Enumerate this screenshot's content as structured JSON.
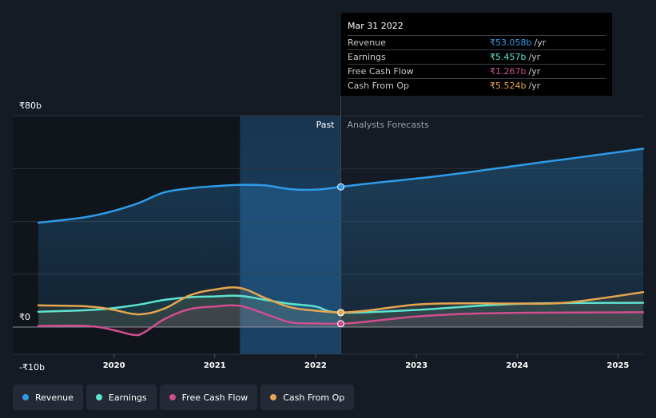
{
  "chart_data": {
    "type": "area",
    "y_axis_labels": [
      "₹80b",
      "₹0",
      "-₹10b"
    ],
    "ylim": [
      -10,
      80
    ],
    "x_ticks": [
      "2020",
      "2021",
      "2022",
      "2023",
      "2024",
      "2025"
    ],
    "x_range": [
      2019.25,
      2025.25
    ],
    "past_label": "Past",
    "forecast_label": "Analysts Forecasts",
    "divider_x": 2022.25,
    "highlight_range": [
      2021.25,
      2022.25
    ],
    "series": [
      {
        "name": "Revenue",
        "color": "#2f9be8",
        "fill": true,
        "x": [
          2019.25,
          2019.5,
          2019.75,
          2020.0,
          2020.25,
          2020.5,
          2020.75,
          2021.0,
          2021.25,
          2021.5,
          2021.75,
          2022.0,
          2022.25,
          2022.5,
          2022.75,
          2023.0,
          2023.25,
          2023.5,
          2023.75,
          2024.0,
          2024.25,
          2024.5,
          2024.75,
          2025.0,
          2025.25
        ],
        "values": [
          39.5,
          40.5,
          41.8,
          44,
          47,
          51,
          52.5,
          53.3,
          53.8,
          53.6,
          52.2,
          52.0,
          53.058,
          54.2,
          55.2,
          56.2,
          57.3,
          58.5,
          59.8,
          61.1,
          62.4,
          63.6,
          64.9,
          66.2,
          67.5
        ]
      },
      {
        "name": "Earnings",
        "color": "#5de3d0",
        "fill": false,
        "x": [
          2019.25,
          2019.75,
          2020.0,
          2020.25,
          2020.5,
          2020.75,
          2021.0,
          2021.25,
          2021.5,
          2021.75,
          2022.0,
          2022.25,
          2023.0,
          2024.0,
          2025.25
        ],
        "values": [
          5.8,
          6.4,
          7.2,
          8.5,
          10.3,
          11.3,
          11.6,
          11.8,
          10.3,
          8.8,
          7.8,
          5.457,
          6.5,
          8.8,
          9.2
        ]
      },
      {
        "name": "Free Cash Flow",
        "color": "#d04e8f",
        "fill": false,
        "x": [
          2019.25,
          2019.75,
          2020.0,
          2020.2,
          2020.3,
          2020.5,
          2020.75,
          2021.0,
          2021.25,
          2021.5,
          2021.75,
          2022.0,
          2022.25,
          2022.5,
          2023.0,
          2023.5,
          2024.0,
          2025.25
        ],
        "values": [
          0.4,
          0.4,
          -1.2,
          -3.0,
          -2.0,
          3.0,
          6.8,
          7.8,
          8.0,
          5.0,
          1.8,
          1.4,
          1.267,
          2.0,
          4.0,
          5.0,
          5.4,
          5.6
        ]
      },
      {
        "name": "Cash From Op",
        "color": "#e6a550",
        "fill": false,
        "x": [
          2019.25,
          2019.75,
          2020.0,
          2020.25,
          2020.5,
          2020.75,
          2021.0,
          2021.25,
          2021.5,
          2021.75,
          2022.0,
          2022.25,
          2022.5,
          2023.0,
          2023.5,
          2024.0,
          2024.5,
          2025.25
        ],
        "values": [
          8.2,
          7.8,
          6.5,
          4.8,
          7.0,
          12.0,
          14.2,
          14.8,
          11.0,
          7.5,
          6.2,
          5.524,
          6.2,
          8.5,
          9.0,
          8.9,
          9.3,
          13.2
        ]
      }
    ]
  },
  "tooltip": {
    "date": "Mar 31 2022",
    "rows": [
      {
        "label": "Revenue",
        "value": "₹53.058b",
        "unit": "/yr",
        "color": "#2f9be8"
      },
      {
        "label": "Earnings",
        "value": "₹5.457b",
        "unit": "/yr",
        "color": "#5de3d0"
      },
      {
        "label": "Free Cash Flow",
        "value": "₹1.267b",
        "unit": "/yr",
        "color": "#d04e8f"
      },
      {
        "label": "Cash From Op",
        "value": "₹5.524b",
        "unit": "/yr",
        "color": "#e6a550"
      }
    ]
  },
  "legend": [
    {
      "label": "Revenue",
      "color": "#2f9be8"
    },
    {
      "label": "Earnings",
      "color": "#5de3d0"
    },
    {
      "label": "Free Cash Flow",
      "color": "#d04e8f"
    },
    {
      "label": "Cash From Op",
      "color": "#e6a550"
    }
  ]
}
